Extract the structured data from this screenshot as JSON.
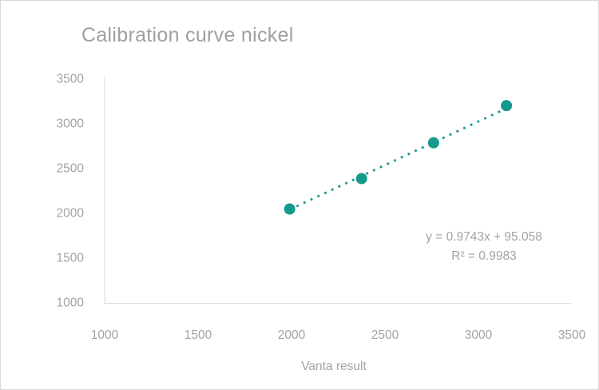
{
  "chart": {
    "title": "Calibration curve nickel",
    "x_axis_title": "Vanta result",
    "equation_line1": "y = 0.9743x + 95.058",
    "equation_line2": "R² = 0.9983"
  },
  "chart_data": {
    "type": "scatter",
    "title": "Calibration curve nickel",
    "xlabel": "Vanta result",
    "ylabel": "",
    "points": [
      [
        1990,
        2040
      ],
      [
        2375,
        2380
      ],
      [
        2760,
        2780
      ],
      [
        3150,
        3195
      ]
    ],
    "xlim": [
      1000,
      3500
    ],
    "ylim": [
      1000,
      3500
    ],
    "xticks": [
      1000,
      1500,
      2000,
      2500,
      3000,
      3500
    ],
    "yticks": [
      1000,
      1500,
      2000,
      2500,
      3000,
      3500
    ],
    "grid": false,
    "legend": null,
    "trendline": {
      "type": "linear",
      "slope": 0.9743,
      "intercept": 95.058,
      "equation": "y = 0.9743x + 95.058",
      "r_squared": 0.9983,
      "r_squared_label": "R² = 0.9983",
      "style": "dotted"
    },
    "marker_color": "#14998C",
    "trendline_color": "#14998C",
    "text_color": "#A3A3A3",
    "axis_color": "#D9D9D9",
    "background_color": "#FFFFFF"
  }
}
